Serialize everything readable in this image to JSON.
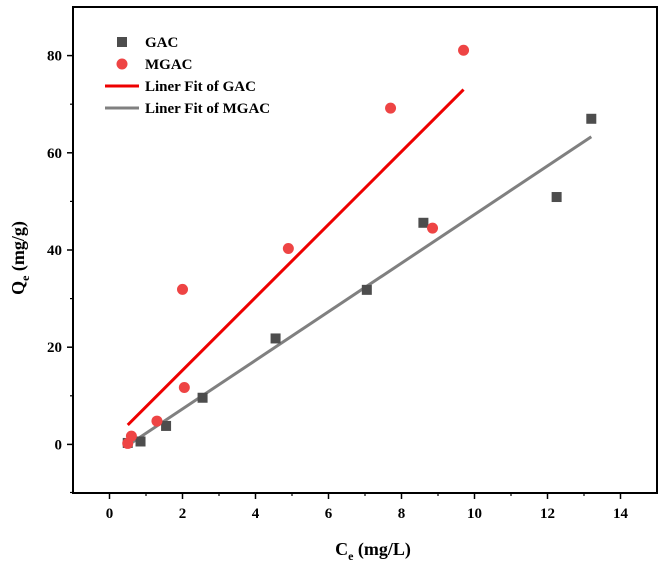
{
  "chart_data": {
    "type": "scatter",
    "title": "",
    "xlabel": {
      "main": "C",
      "sub": "e",
      "unit": " (mg/L)"
    },
    "ylabel": {
      "main": "Q",
      "sub": "e",
      "unit": " (mg/g)"
    },
    "xlim": [
      -1,
      15
    ],
    "ylim": [
      -10,
      90
    ],
    "xticks": [
      "0",
      "2",
      "4",
      "6",
      "8",
      "10",
      "12",
      "14"
    ],
    "yticks": [
      "0",
      "20",
      "40",
      "60",
      "80"
    ],
    "grid": false,
    "legend_position": "top-left",
    "series": [
      {
        "name": "GAC",
        "marker": "square",
        "color": "#4d4d4d",
        "points": [
          [
            0.5,
            0.3
          ],
          [
            0.85,
            0.6
          ],
          [
            1.55,
            3.8
          ],
          [
            2.55,
            9.6
          ],
          [
            4.55,
            21.8
          ],
          [
            7.05,
            31.8
          ],
          [
            8.6,
            45.6
          ],
          [
            12.25,
            50.9
          ],
          [
            13.2,
            67.0
          ]
        ]
      },
      {
        "name": "MGAC",
        "marker": "circle",
        "color": "#ee4444",
        "points": [
          [
            0.5,
            0.2
          ],
          [
            0.6,
            1.7
          ],
          [
            1.3,
            4.8
          ],
          [
            2.0,
            31.9
          ],
          [
            2.05,
            11.7
          ],
          [
            4.9,
            40.3
          ],
          [
            7.7,
            69.2
          ],
          [
            8.85,
            44.5
          ],
          [
            9.7,
            81.1
          ]
        ]
      },
      {
        "name": "Liner Fit of GAC",
        "type": "line",
        "color": "#ee0000",
        "points": [
          [
            0.5,
            4.0
          ],
          [
            9.7,
            73.0
          ]
        ]
      },
      {
        "name": "Liner Fit of MGAC",
        "type": "line",
        "color": "#808080",
        "points": [
          [
            0.5,
            -0.2
          ],
          [
            13.2,
            63.3
          ]
        ]
      }
    ]
  }
}
